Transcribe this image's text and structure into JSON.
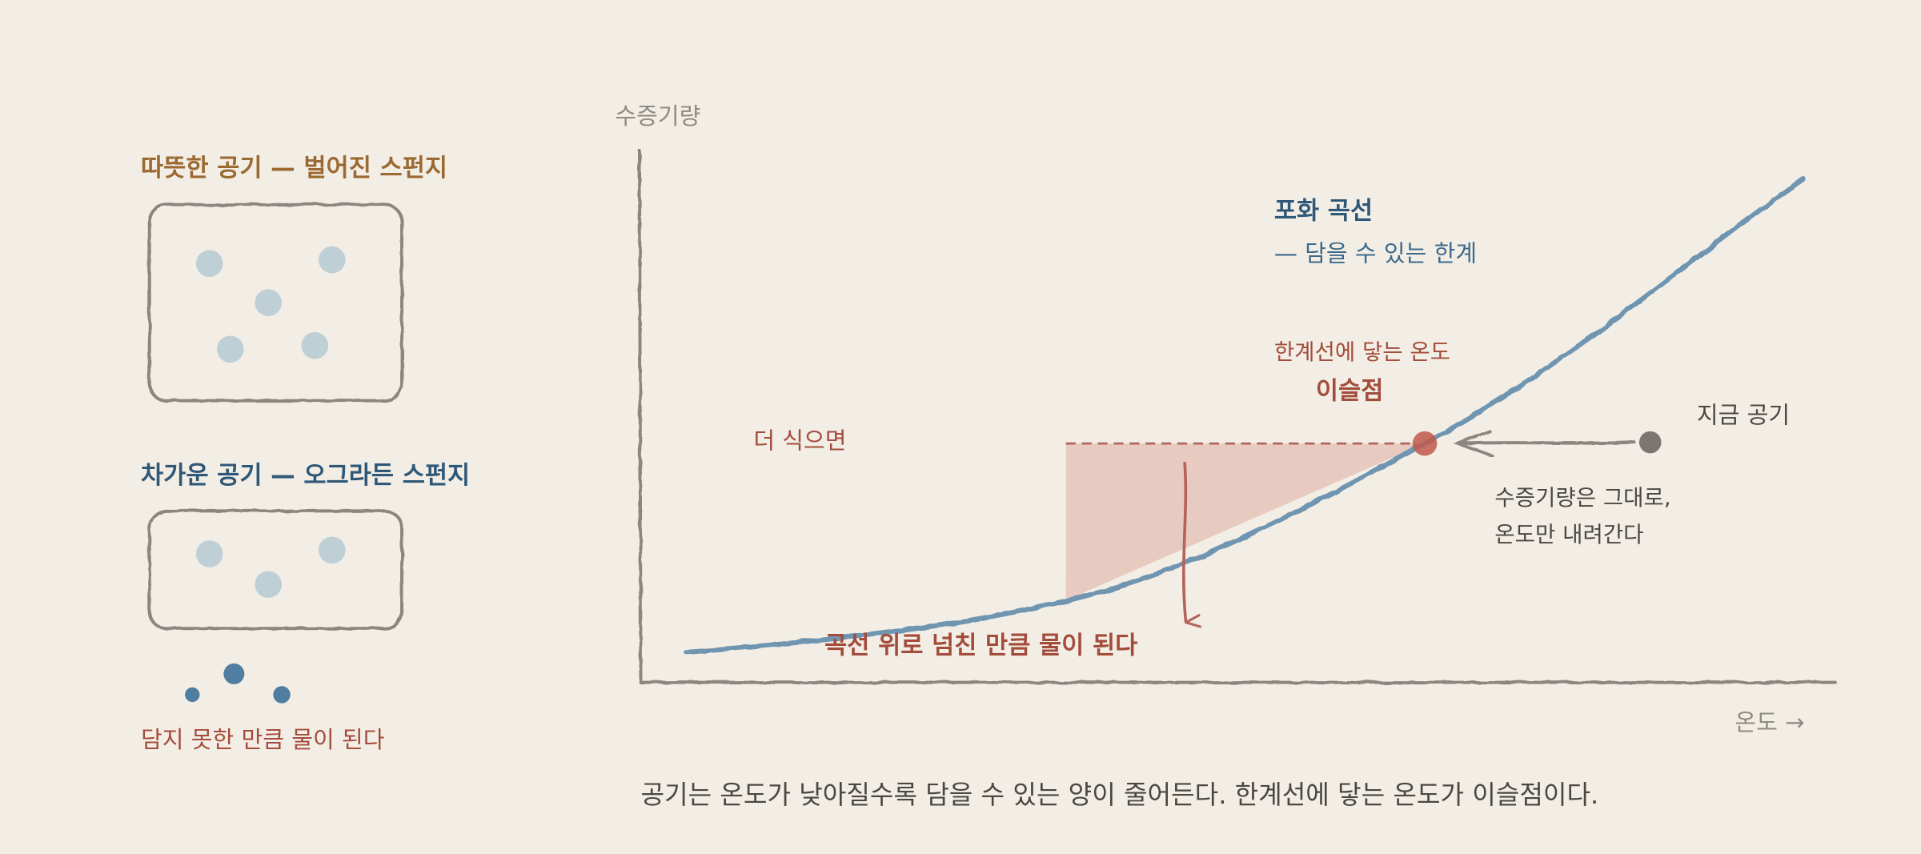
{
  "left_panel": {
    "warm": {
      "title": "따뜻한 공기 — 벌어진 스펀지"
    },
    "cold": {
      "title": "차가운 공기 — 오그라든 스펀지"
    },
    "overflow_label": "담지 못한 만큼 물이 된다"
  },
  "chart": {
    "y_axis_label": "수증기량",
    "x_axis_label": "온도 →",
    "curve_label": {
      "title": "포화 곡선",
      "subtitle": "— 담을 수 있는 한계"
    },
    "dew_point": {
      "label": "한계선에 닿는 온도",
      "title": "이슬점"
    },
    "current_air": {
      "label": "지금 공기",
      "note": [
        "수증기량은 그대로,",
        "온도만 내려간다"
      ]
    },
    "cooling_label": "더 식으면",
    "overflow_label": "곡선 위로 넘친 만큼 물이 된다"
  },
  "caption": "공기는 온도가 낮아질수록 담을 수 있는 양이 줄어든다. 한계선에 닿는 온도가 이슬점이다."
}
